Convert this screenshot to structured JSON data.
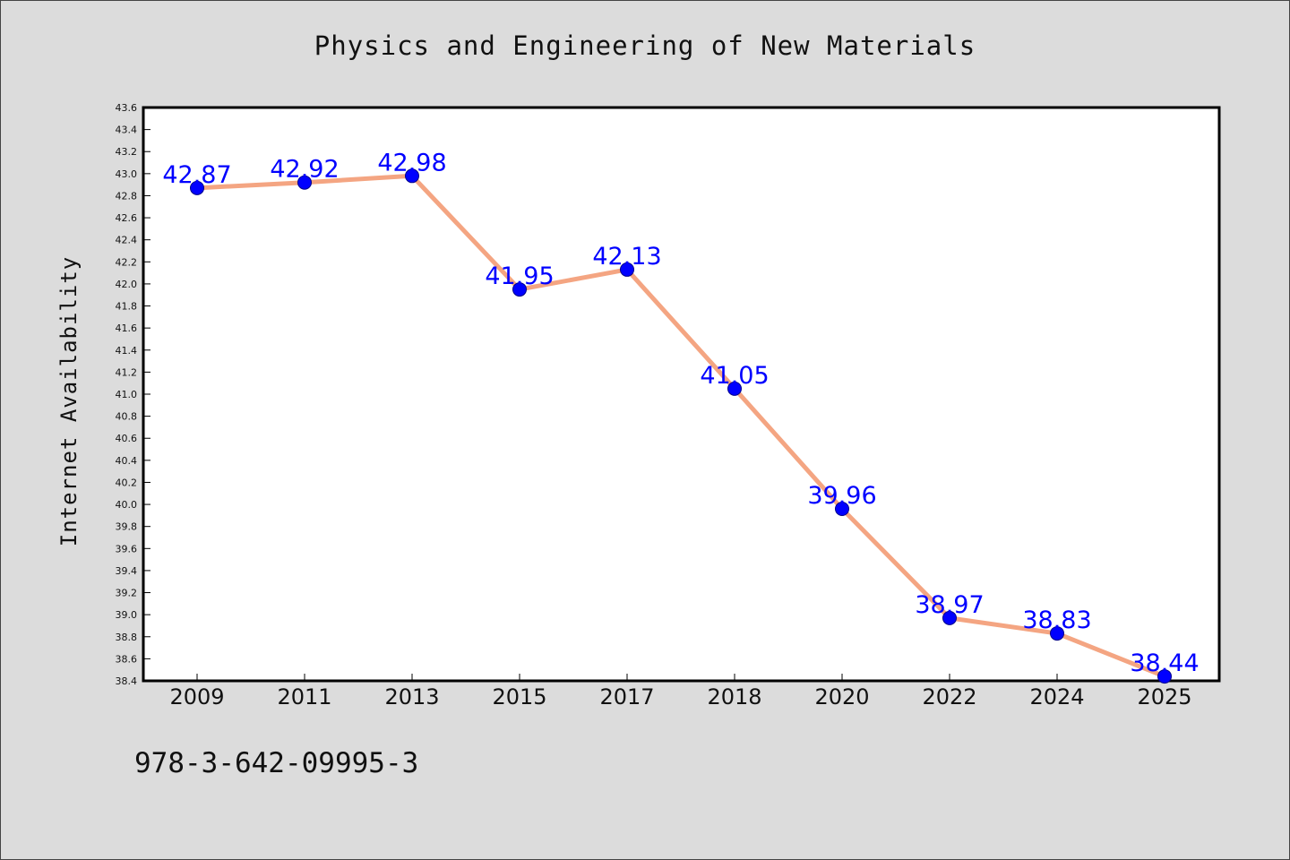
{
  "page": {
    "isbn": "978-3-642-09995-3"
  },
  "chart_data": {
    "type": "line",
    "title": "Physics and Engineering of New Materials",
    "xlabel": "",
    "ylabel": "Internet Availability",
    "categories": [
      "2009",
      "2011",
      "2013",
      "2015",
      "2017",
      "2018",
      "2020",
      "2022",
      "2024",
      "2025"
    ],
    "series": [
      {
        "values": [
          42.87,
          42.92,
          42.98,
          41.95,
          42.13,
          41.05,
          39.96,
          38.97,
          38.83,
          38.44
        ],
        "line_color": "#f4a582",
        "marker_color": "#0000ff",
        "labels": [
          "42.87",
          "42.92",
          "42.98",
          "41.95",
          "42.13",
          "41.05",
          "39.96",
          "38.97",
          "38.83",
          "38.44"
        ]
      }
    ],
    "ylim": [
      38.4,
      43.6
    ],
    "yticks": [
      "38.4",
      "38.6",
      "38.8",
      "39.0",
      "39.2",
      "39.4",
      "39.6",
      "39.8",
      "40.0",
      "40.2",
      "40.4",
      "40.6",
      "40.8",
      "41.0",
      "41.2",
      "41.4",
      "41.6",
      "41.8",
      "42.0",
      "42.2",
      "42.4",
      "42.6",
      "42.8",
      "43.0",
      "43.2",
      "43.4",
      "43.6"
    ],
    "grid": false,
    "legend": "none",
    "colors": {
      "background": "#dcdcdc",
      "plot_background": "#ffffff",
      "line": "#f4a582",
      "marker": "#0000ff",
      "label": "#0000ff"
    }
  }
}
